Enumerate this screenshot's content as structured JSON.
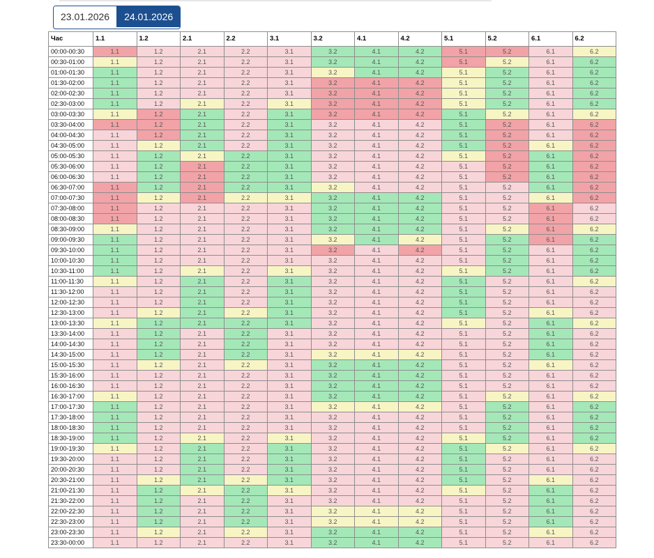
{
  "date_tabs": [
    {
      "label": "23.01.2026",
      "active": false
    },
    {
      "label": "24.01.2026",
      "active": true
    }
  ],
  "legend_colors": {
    "g": "#a4e8b8",
    "p": "#f8d5d9",
    "y": "#f8f5c5",
    "r": "#f2a3a7"
  },
  "table": {
    "time_header": "Час",
    "columns": [
      "1.1",
      "1.2",
      "2.1",
      "2.2",
      "3.1",
      "3.2",
      "4.1",
      "4.2",
      "5.1",
      "5.2",
      "6.1",
      "6.2"
    ],
    "rows": [
      {
        "time": "00:00-00:30",
        "status": [
          "r",
          "p",
          "p",
          "p",
          "p",
          "g",
          "g",
          "g",
          "r",
          "r",
          "p",
          "y"
        ]
      },
      {
        "time": "00:30-01:00",
        "status": [
          "y",
          "p",
          "p",
          "p",
          "p",
          "g",
          "g",
          "g",
          "r",
          "y",
          "p",
          "g"
        ]
      },
      {
        "time": "01:00-01:30",
        "status": [
          "g",
          "p",
          "p",
          "p",
          "p",
          "y",
          "g",
          "g",
          "y",
          "g",
          "p",
          "g"
        ]
      },
      {
        "time": "01:30-02:00",
        "status": [
          "g",
          "p",
          "p",
          "p",
          "p",
          "r",
          "r",
          "r",
          "y",
          "g",
          "p",
          "g"
        ]
      },
      {
        "time": "02:00-02:30",
        "status": [
          "g",
          "p",
          "p",
          "p",
          "p",
          "r",
          "r",
          "r",
          "y",
          "g",
          "p",
          "g"
        ]
      },
      {
        "time": "02:30-03:00",
        "status": [
          "g",
          "p",
          "y",
          "p",
          "y",
          "r",
          "r",
          "r",
          "y",
          "g",
          "p",
          "g"
        ]
      },
      {
        "time": "03:00-03:30",
        "status": [
          "y",
          "r",
          "g",
          "p",
          "g",
          "r",
          "r",
          "r",
          "g",
          "y",
          "p",
          "y"
        ]
      },
      {
        "time": "03:30-04:00",
        "status": [
          "r",
          "r",
          "g",
          "p",
          "g",
          "p",
          "p",
          "p",
          "g",
          "r",
          "p",
          "r"
        ]
      },
      {
        "time": "04:00-04:30",
        "status": [
          "p",
          "r",
          "g",
          "p",
          "g",
          "p",
          "p",
          "p",
          "g",
          "r",
          "p",
          "r"
        ]
      },
      {
        "time": "04:30-05:00",
        "status": [
          "p",
          "y",
          "g",
          "p",
          "g",
          "p",
          "p",
          "p",
          "g",
          "r",
          "y",
          "r"
        ]
      },
      {
        "time": "05:00-05:30",
        "status": [
          "p",
          "g",
          "y",
          "g",
          "g",
          "p",
          "p",
          "p",
          "y",
          "r",
          "g",
          "r"
        ]
      },
      {
        "time": "05:30-06:00",
        "status": [
          "p",
          "g",
          "r",
          "g",
          "g",
          "p",
          "p",
          "p",
          "p",
          "r",
          "g",
          "r"
        ]
      },
      {
        "time": "06:00-06:30",
        "status": [
          "p",
          "g",
          "r",
          "g",
          "g",
          "p",
          "p",
          "p",
          "p",
          "r",
          "g",
          "r"
        ]
      },
      {
        "time": "06:30-07:00",
        "status": [
          "r",
          "g",
          "r",
          "g",
          "g",
          "y",
          "p",
          "p",
          "p",
          "p",
          "g",
          "r"
        ]
      },
      {
        "time": "07:00-07:30",
        "status": [
          "r",
          "y",
          "r",
          "y",
          "y",
          "g",
          "g",
          "g",
          "p",
          "p",
          "y",
          "r"
        ]
      },
      {
        "time": "07:30-08:00",
        "status": [
          "r",
          "p",
          "p",
          "p",
          "p",
          "g",
          "g",
          "g",
          "p",
          "p",
          "r",
          "p"
        ]
      },
      {
        "time": "08:00-08:30",
        "status": [
          "r",
          "p",
          "p",
          "p",
          "p",
          "g",
          "g",
          "g",
          "p",
          "p",
          "r",
          "p"
        ]
      },
      {
        "time": "08:30-09:00",
        "status": [
          "y",
          "p",
          "p",
          "p",
          "p",
          "g",
          "g",
          "g",
          "p",
          "y",
          "r",
          "y"
        ]
      },
      {
        "time": "09:00-09:30",
        "status": [
          "g",
          "p",
          "p",
          "p",
          "p",
          "y",
          "g",
          "y",
          "p",
          "g",
          "r",
          "g"
        ]
      },
      {
        "time": "09:30-10:00",
        "status": [
          "g",
          "p",
          "p",
          "p",
          "p",
          "r",
          "p",
          "r",
          "p",
          "g",
          "p",
          "g"
        ]
      },
      {
        "time": "10:00-10:30",
        "status": [
          "g",
          "p",
          "p",
          "p",
          "p",
          "p",
          "p",
          "p",
          "p",
          "g",
          "p",
          "g"
        ]
      },
      {
        "time": "10:30-11:00",
        "status": [
          "g",
          "p",
          "y",
          "p",
          "y",
          "p",
          "p",
          "p",
          "y",
          "g",
          "p",
          "g"
        ]
      },
      {
        "time": "11:00-11:30",
        "status": [
          "y",
          "p",
          "g",
          "p",
          "g",
          "p",
          "p",
          "p",
          "g",
          "p",
          "p",
          "y"
        ]
      },
      {
        "time": "11:30-12:00",
        "status": [
          "p",
          "p",
          "g",
          "p",
          "g",
          "p",
          "p",
          "p",
          "g",
          "p",
          "p",
          "p"
        ]
      },
      {
        "time": "12:00-12:30",
        "status": [
          "p",
          "p",
          "g",
          "p",
          "g",
          "p",
          "p",
          "p",
          "g",
          "p",
          "p",
          "p"
        ]
      },
      {
        "time": "12:30-13:00",
        "status": [
          "p",
          "y",
          "g",
          "y",
          "g",
          "p",
          "p",
          "p",
          "g",
          "p",
          "y",
          "p"
        ]
      },
      {
        "time": "13:00-13:30",
        "status": [
          "y",
          "g",
          "g",
          "g",
          "g",
          "p",
          "p",
          "p",
          "y",
          "p",
          "g",
          "y"
        ]
      },
      {
        "time": "13:30-14:00",
        "status": [
          "p",
          "g",
          "p",
          "g",
          "p",
          "p",
          "p",
          "p",
          "p",
          "p",
          "g",
          "p"
        ]
      },
      {
        "time": "14:00-14:30",
        "status": [
          "p",
          "g",
          "p",
          "g",
          "p",
          "p",
          "p",
          "p",
          "p",
          "p",
          "g",
          "p"
        ]
      },
      {
        "time": "14:30-15:00",
        "status": [
          "p",
          "g",
          "p",
          "g",
          "p",
          "y",
          "y",
          "y",
          "p",
          "p",
          "g",
          "p"
        ]
      },
      {
        "time": "15:00-15:30",
        "status": [
          "p",
          "y",
          "p",
          "y",
          "p",
          "g",
          "g",
          "g",
          "p",
          "p",
          "y",
          "p"
        ]
      },
      {
        "time": "15:30-16:00",
        "status": [
          "p",
          "p",
          "p",
          "p",
          "p",
          "g",
          "g",
          "g",
          "p",
          "p",
          "p",
          "p"
        ]
      },
      {
        "time": "16:00-16:30",
        "status": [
          "p",
          "p",
          "p",
          "p",
          "p",
          "g",
          "g",
          "g",
          "p",
          "p",
          "p",
          "p"
        ]
      },
      {
        "time": "16:30-17:00",
        "status": [
          "y",
          "p",
          "p",
          "p",
          "p",
          "g",
          "g",
          "g",
          "p",
          "y",
          "p",
          "y"
        ]
      },
      {
        "time": "17:00-17:30",
        "status": [
          "g",
          "p",
          "p",
          "p",
          "p",
          "y",
          "y",
          "y",
          "p",
          "g",
          "p",
          "g"
        ]
      },
      {
        "time": "17:30-18:00",
        "status": [
          "g",
          "p",
          "p",
          "p",
          "p",
          "p",
          "p",
          "p",
          "p",
          "g",
          "p",
          "g"
        ]
      },
      {
        "time": "18:00-18:30",
        "status": [
          "g",
          "p",
          "p",
          "p",
          "p",
          "p",
          "p",
          "p",
          "p",
          "g",
          "p",
          "g"
        ]
      },
      {
        "time": "18:30-19:00",
        "status": [
          "g",
          "p",
          "y",
          "p",
          "y",
          "p",
          "p",
          "p",
          "y",
          "g",
          "p",
          "g"
        ]
      },
      {
        "time": "19:00-19:30",
        "status": [
          "y",
          "p",
          "g",
          "p",
          "g",
          "p",
          "p",
          "p",
          "g",
          "y",
          "p",
          "y"
        ]
      },
      {
        "time": "19:30-20:00",
        "status": [
          "p",
          "p",
          "g",
          "p",
          "g",
          "p",
          "p",
          "p",
          "g",
          "p",
          "p",
          "p"
        ]
      },
      {
        "time": "20:00-20:30",
        "status": [
          "p",
          "p",
          "g",
          "p",
          "g",
          "p",
          "p",
          "p",
          "g",
          "p",
          "p",
          "p"
        ]
      },
      {
        "time": "20:30-21:00",
        "status": [
          "p",
          "y",
          "g",
          "y",
          "g",
          "p",
          "p",
          "p",
          "g",
          "p",
          "y",
          "p"
        ]
      },
      {
        "time": "21:00-21:30",
        "status": [
          "p",
          "g",
          "y",
          "g",
          "y",
          "p",
          "p",
          "p",
          "y",
          "p",
          "g",
          "p"
        ]
      },
      {
        "time": "21:30-22:00",
        "status": [
          "p",
          "g",
          "p",
          "g",
          "p",
          "p",
          "p",
          "p",
          "p",
          "p",
          "g",
          "p"
        ]
      },
      {
        "time": "22:00-22:30",
        "status": [
          "p",
          "g",
          "p",
          "g",
          "p",
          "y",
          "y",
          "y",
          "p",
          "p",
          "g",
          "p"
        ]
      },
      {
        "time": "22:30-23:00",
        "status": [
          "p",
          "g",
          "p",
          "g",
          "p",
          "y",
          "y",
          "y",
          "p",
          "p",
          "g",
          "p"
        ]
      },
      {
        "time": "23:00-23:30",
        "status": [
          "p",
          "y",
          "p",
          "y",
          "p",
          "g",
          "g",
          "g",
          "p",
          "p",
          "y",
          "p"
        ]
      },
      {
        "time": "23:30-00:00",
        "status": [
          "p",
          "p",
          "p",
          "p",
          "p",
          "g",
          "g",
          "g",
          "p",
          "p",
          "p",
          "p"
        ]
      }
    ]
  }
}
